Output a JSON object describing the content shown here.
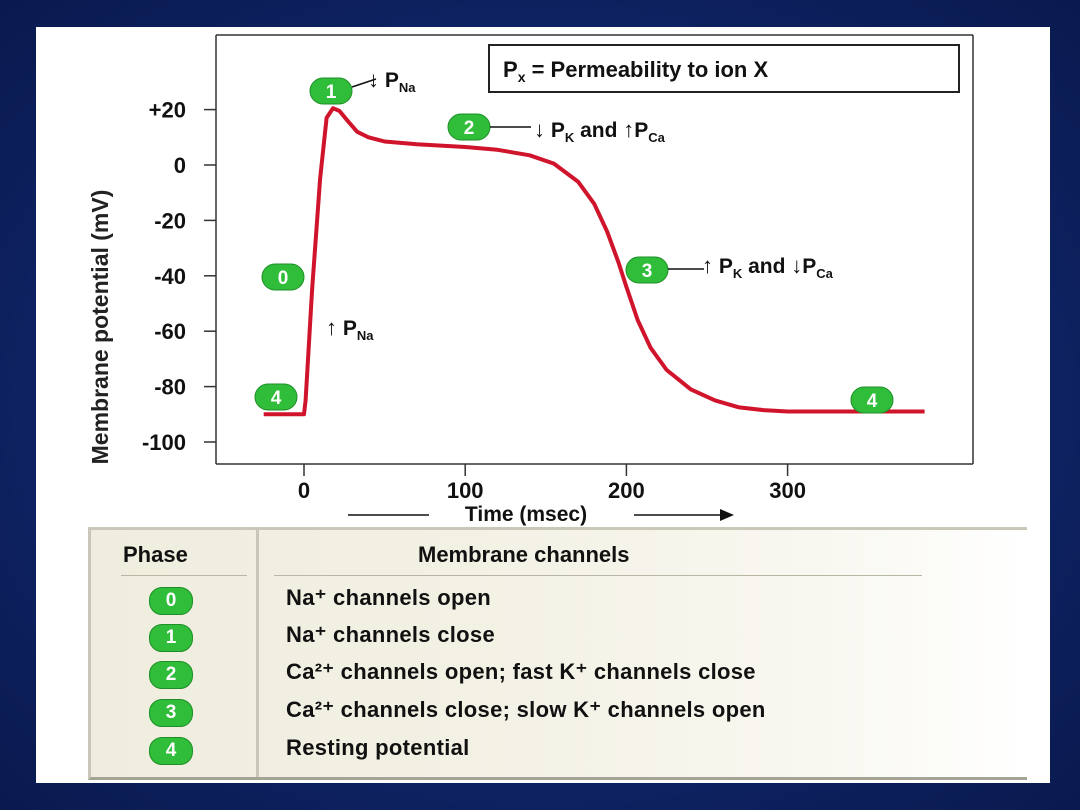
{
  "legend_box": "Px = Permeability to ion X",
  "chart_data": {
    "type": "line",
    "xlabel": "Time (msec)",
    "ylabel": "Membrane potential (mV)",
    "xlim": [
      -25,
      385
    ],
    "ylim": [
      -105,
      38
    ],
    "x_ticks": [
      0,
      100,
      200,
      300
    ],
    "y_ticks": [
      20,
      0,
      -20,
      -40,
      -60,
      -80,
      -100
    ],
    "y_tick_labels": [
      "+20",
      "0",
      "-20",
      "-40",
      "-60",
      "-80",
      "-100"
    ],
    "grid": false,
    "series": [
      {
        "color": "#d0142c",
        "x": [
          -25,
          0,
          1,
          5,
          10,
          14,
          18,
          22,
          27,
          33,
          40,
          50,
          70,
          100,
          120,
          140,
          155,
          170,
          180,
          188,
          195,
          200,
          207,
          215,
          225,
          240,
          255,
          270,
          285,
          300,
          330,
          385
        ],
        "y": [
          -90,
          -90,
          -85,
          -45,
          -5,
          17,
          20.5,
          19.5,
          16,
          12,
          10,
          8.5,
          7.5,
          6.5,
          5.5,
          3.5,
          0.5,
          -6,
          -14,
          -24,
          -35,
          -44,
          -56,
          -66,
          -74,
          -81,
          -85,
          -87.5,
          -88.5,
          -89,
          -89,
          -89
        ]
      }
    ],
    "annotations": {
      "phase0": "0",
      "phase1": "1",
      "phase2": "2",
      "phase3": "3",
      "phase4_left": "4",
      "phase4_right": "4",
      "a1": {
        "arrow": "↓",
        "p": "P",
        "sub": "Na",
        "and": "",
        "arrow2": "",
        "p2": "",
        "sub2": ""
      },
      "a0": {
        "arrow": "↑",
        "p": "P",
        "sub": "Na",
        "and": "",
        "arrow2": "",
        "p2": "",
        "sub2": ""
      },
      "a2": {
        "arrow": "↓",
        "p": "P",
        "sub": "K",
        "and": "and",
        "arrow2": "↑",
        "p2": "P",
        "sub2": "Ca"
      },
      "a3": {
        "arrow": "↑",
        "p": "P",
        "sub": "K",
        "and": "and",
        "arrow2": "↓",
        "p2": "P",
        "sub2": "Ca"
      }
    }
  },
  "table": {
    "header_phase": "Phase",
    "header_channels": "Membrane channels",
    "rows": [
      {
        "phase": "0",
        "text": "Na⁺ channels open"
      },
      {
        "phase": "1",
        "text": "Na⁺ channels close"
      },
      {
        "phase": "2",
        "text": "Ca²⁺ channels open; fast K⁺ channels close"
      },
      {
        "phase": "3",
        "text": "Ca²⁺ channels close; slow K⁺ channels open"
      },
      {
        "phase": "4",
        "text": "Resting potential"
      }
    ]
  },
  "colors": {
    "background": "#0f2467",
    "trace": "#d0142c",
    "badge": "#2fbd3a"
  }
}
